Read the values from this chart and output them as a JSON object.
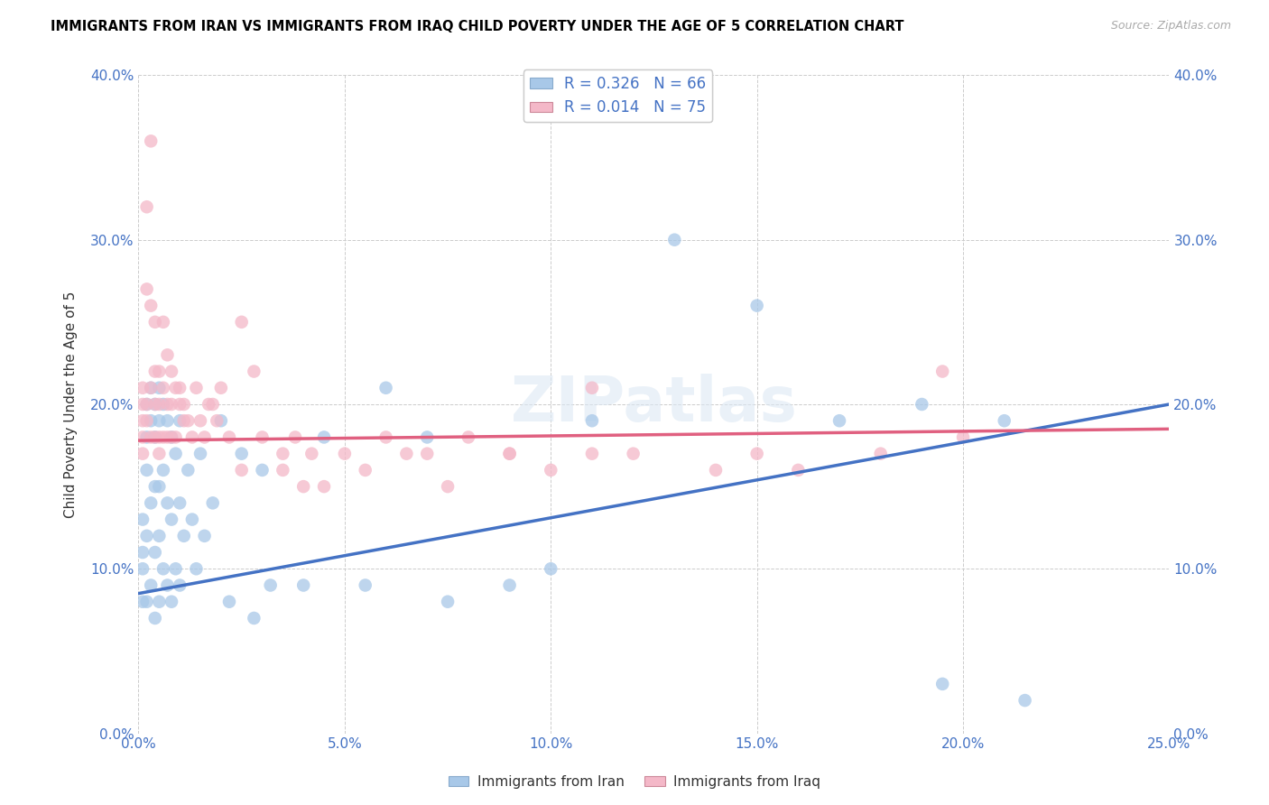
{
  "title": "IMMIGRANTS FROM IRAN VS IMMIGRANTS FROM IRAQ CHILD POVERTY UNDER THE AGE OF 5 CORRELATION CHART",
  "source": "Source: ZipAtlas.com",
  "ylabel": "Child Poverty Under the Age of 5",
  "legend_bottom": [
    "Immigrants from Iran",
    "Immigrants from Iraq"
  ],
  "iran_color": "#a8c8e8",
  "iraq_color": "#f4b8c8",
  "iran_line_color": "#4472c4",
  "iraq_line_color": "#e06080",
  "R_iran": 0.326,
  "N_iran": 66,
  "R_iraq": 0.014,
  "N_iraq": 75,
  "xlim": [
    0,
    0.25
  ],
  "ylim": [
    0,
    0.4
  ],
  "xticks": [
    0.0,
    0.05,
    0.1,
    0.15,
    0.2,
    0.25
  ],
  "yticks": [
    0.0,
    0.1,
    0.2,
    0.3,
    0.4
  ],
  "iran_x": [
    0.001,
    0.001,
    0.001,
    0.001,
    0.002,
    0.002,
    0.002,
    0.002,
    0.002,
    0.003,
    0.003,
    0.003,
    0.003,
    0.004,
    0.004,
    0.004,
    0.004,
    0.004,
    0.005,
    0.005,
    0.005,
    0.005,
    0.005,
    0.006,
    0.006,
    0.006,
    0.007,
    0.007,
    0.007,
    0.008,
    0.008,
    0.008,
    0.009,
    0.009,
    0.01,
    0.01,
    0.01,
    0.011,
    0.012,
    0.013,
    0.014,
    0.015,
    0.016,
    0.018,
    0.02,
    0.022,
    0.025,
    0.028,
    0.03,
    0.032,
    0.04,
    0.045,
    0.055,
    0.06,
    0.07,
    0.075,
    0.09,
    0.1,
    0.11,
    0.13,
    0.15,
    0.17,
    0.19,
    0.195,
    0.21,
    0.215
  ],
  "iran_y": [
    0.13,
    0.11,
    0.1,
    0.08,
    0.2,
    0.18,
    0.16,
    0.12,
    0.08,
    0.21,
    0.19,
    0.14,
    0.09,
    0.2,
    0.18,
    0.15,
    0.11,
    0.07,
    0.21,
    0.19,
    0.15,
    0.12,
    0.08,
    0.2,
    0.16,
    0.1,
    0.19,
    0.14,
    0.09,
    0.18,
    0.13,
    0.08,
    0.17,
    0.1,
    0.19,
    0.14,
    0.09,
    0.12,
    0.16,
    0.13,
    0.1,
    0.17,
    0.12,
    0.14,
    0.19,
    0.08,
    0.17,
    0.07,
    0.16,
    0.09,
    0.09,
    0.18,
    0.09,
    0.21,
    0.18,
    0.08,
    0.09,
    0.1,
    0.19,
    0.3,
    0.26,
    0.19,
    0.2,
    0.03,
    0.19,
    0.02
  ],
  "iraq_x": [
    0.001,
    0.001,
    0.001,
    0.001,
    0.001,
    0.002,
    0.002,
    0.002,
    0.002,
    0.003,
    0.003,
    0.003,
    0.003,
    0.004,
    0.004,
    0.004,
    0.004,
    0.005,
    0.005,
    0.005,
    0.005,
    0.006,
    0.006,
    0.006,
    0.007,
    0.007,
    0.007,
    0.008,
    0.008,
    0.008,
    0.009,
    0.009,
    0.01,
    0.01,
    0.011,
    0.011,
    0.012,
    0.013,
    0.014,
    0.015,
    0.016,
    0.017,
    0.018,
    0.019,
    0.02,
    0.022,
    0.025,
    0.028,
    0.03,
    0.035,
    0.038,
    0.04,
    0.042,
    0.05,
    0.055,
    0.06,
    0.065,
    0.07,
    0.075,
    0.08,
    0.09,
    0.1,
    0.11,
    0.12,
    0.14,
    0.15,
    0.16,
    0.18,
    0.195,
    0.2,
    0.025,
    0.035,
    0.045,
    0.09,
    0.11
  ],
  "iraq_y": [
    0.2,
    0.19,
    0.21,
    0.18,
    0.17,
    0.32,
    0.27,
    0.2,
    0.19,
    0.26,
    0.21,
    0.36,
    0.18,
    0.25,
    0.22,
    0.2,
    0.18,
    0.22,
    0.2,
    0.18,
    0.17,
    0.21,
    0.25,
    0.18,
    0.23,
    0.2,
    0.18,
    0.22,
    0.2,
    0.18,
    0.21,
    0.18,
    0.21,
    0.2,
    0.2,
    0.19,
    0.19,
    0.18,
    0.21,
    0.19,
    0.18,
    0.2,
    0.2,
    0.19,
    0.21,
    0.18,
    0.25,
    0.22,
    0.18,
    0.17,
    0.18,
    0.15,
    0.17,
    0.17,
    0.16,
    0.18,
    0.17,
    0.17,
    0.15,
    0.18,
    0.17,
    0.16,
    0.17,
    0.17,
    0.16,
    0.17,
    0.16,
    0.17,
    0.22,
    0.18,
    0.16,
    0.16,
    0.15,
    0.17,
    0.21
  ],
  "iran_line_x": [
    0.0,
    0.25
  ],
  "iran_line_y": [
    0.085,
    0.2
  ],
  "iraq_line_x": [
    0.0,
    0.25
  ],
  "iraq_line_y": [
    0.178,
    0.185
  ]
}
